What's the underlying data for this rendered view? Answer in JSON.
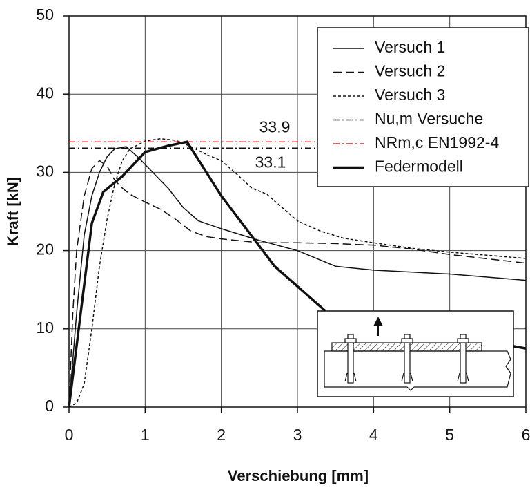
{
  "chart_data": {
    "type": "line",
    "xlabel": "Verschiebung [mm]",
    "ylabel": "Kraft [kN]",
    "xlim": [
      0,
      6
    ],
    "xticks": [
      0,
      1,
      2,
      3,
      4,
      5,
      6
    ],
    "ylim": [
      0,
      50
    ],
    "yticks": [
      0,
      10,
      20,
      30,
      40,
      50
    ],
    "grid": true,
    "legend": "upper right",
    "series": [
      {
        "name": "Versuch 1",
        "color": "#111111",
        "linestyle": "solid",
        "linewidth": 1.5,
        "x": [
          0,
          0.1,
          0.2,
          0.3,
          0.4,
          0.5,
          0.6,
          0.75,
          0.9,
          1.1,
          1.3,
          1.5,
          1.7,
          2,
          2.5,
          3,
          3.5,
          4,
          5,
          6
        ],
        "values": [
          0,
          12,
          22,
          27,
          30,
          32,
          33,
          33.3,
          32,
          30,
          28,
          25.5,
          23.8,
          22.8,
          21.3,
          20,
          18,
          17.5,
          17,
          16.2
        ]
      },
      {
        "name": "Versuch 2",
        "color": "#111111",
        "linestyle": "dashed",
        "linewidth": 1.5,
        "x": [
          0,
          0.05,
          0.1,
          0.2,
          0.3,
          0.4,
          0.5,
          0.6,
          0.7,
          0.8,
          1,
          1.2,
          1.4,
          1.6,
          1.8,
          2,
          2.5,
          3,
          3.5,
          4,
          4.5,
          5,
          6
        ],
        "values": [
          0,
          12,
          20,
          27,
          30.5,
          31.5,
          30.8,
          29,
          28,
          27.2,
          26.2,
          25.3,
          24,
          22.5,
          21.8,
          21.5,
          21,
          21,
          20.9,
          20.7,
          20.2,
          19.5,
          18.4
        ]
      },
      {
        "name": "Versuch 3",
        "color": "#111111",
        "linestyle": "dotted",
        "linewidth": 1.5,
        "x": [
          0,
          0.1,
          0.2,
          0.3,
          0.4,
          0.5,
          0.6,
          0.7,
          0.8,
          1,
          1.2,
          1.4,
          1.6,
          1.8,
          2,
          2.2,
          2.4,
          2.6,
          2.8,
          3,
          3.3,
          3.6,
          4,
          4.5,
          5,
          6
        ],
        "values": [
          0,
          0.5,
          3,
          10,
          18,
          24,
          28.5,
          31.5,
          33,
          34,
          34.3,
          34.1,
          33.3,
          32.3,
          31.5,
          29.8,
          28,
          27.2,
          25.5,
          23.8,
          22.5,
          21.6,
          21,
          20.3,
          19.8,
          19
        ]
      },
      {
        "name": "Nu,m Versuche",
        "color": "#111111",
        "linestyle": "dashdot",
        "linewidth": 1.5,
        "x": [
          0,
          6
        ],
        "values": [
          33.1,
          33.1
        ]
      },
      {
        "name": "NRm,c EN1992-4",
        "color": "#d42a2a",
        "linestyle": "dashdot",
        "linewidth": 1.5,
        "x": [
          0,
          6
        ],
        "values": [
          33.9,
          33.9
        ]
      },
      {
        "name": "Federmodell",
        "color": "#111111",
        "linestyle": "solid",
        "linewidth": 3.5,
        "x": [
          0,
          0.3,
          0.45,
          0.7,
          1,
          1.3,
          1.55,
          2,
          2.7,
          3.4,
          6
        ],
        "values": [
          0,
          23.5,
          27.5,
          29.5,
          32.6,
          33.4,
          33.9,
          27,
          18,
          12,
          7.5
        ]
      }
    ],
    "annotations": [
      {
        "text": "33.9",
        "color": "#d42a2a"
      },
      {
        "text": "33.1",
        "color": "#111111"
      }
    ]
  }
}
